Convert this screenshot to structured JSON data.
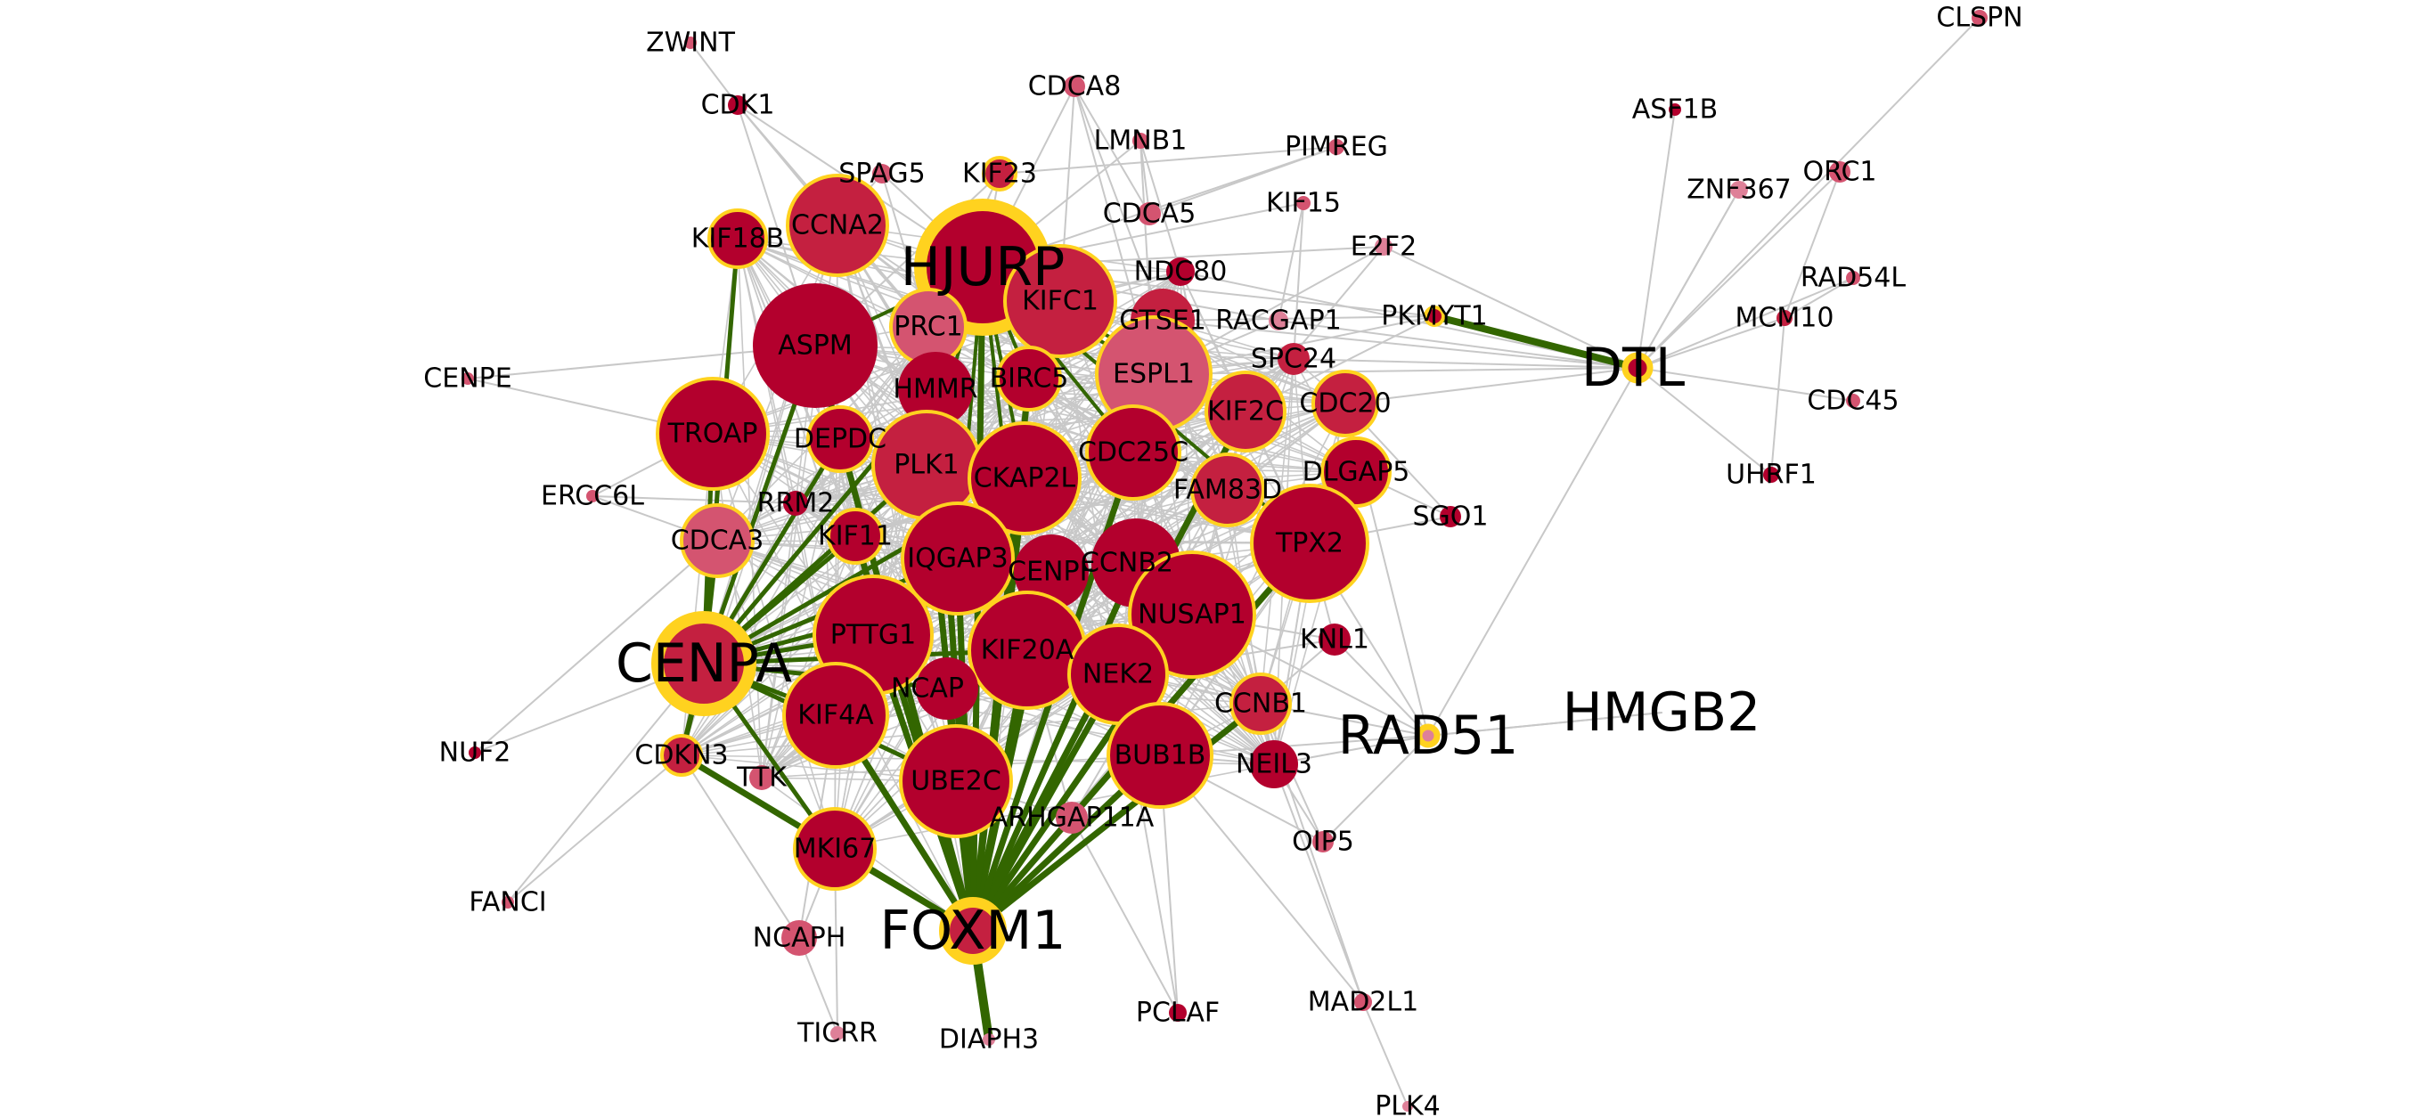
{
  "colors": {
    "background": "#ffffff",
    "edge_default": "#c8c8c8",
    "edge_highlight": "#336600",
    "node_dark": "#b3002d",
    "node_mid": "#c42040",
    "node_light": "#d45470",
    "node_pale": "#de8098",
    "hub_ring": "#ffd21f",
    "label": "#000000"
  },
  "nodes": [
    {
      "id": "HJURP",
      "label": "HJURP",
      "hub": true,
      "big_label": true
    },
    {
      "id": "CENPA",
      "label": "CENPA",
      "hub": true,
      "big_label": true
    },
    {
      "id": "FOXM1",
      "label": "FOXM1",
      "hub": true,
      "big_label": true
    },
    {
      "id": "DTL",
      "label": "DTL",
      "hub": true,
      "big_label": true
    },
    {
      "id": "RAD51",
      "label": "RAD51",
      "hub": true,
      "big_label": true
    },
    {
      "id": "HMGB2",
      "label": "HMGB2",
      "hub": false,
      "big_label": true
    },
    {
      "id": "ZWINT",
      "label": "ZWINT"
    },
    {
      "id": "CDK1",
      "label": "CDK1"
    },
    {
      "id": "CDCA8",
      "label": "CDCA8"
    },
    {
      "id": "LMNB1",
      "label": "LMNB1"
    },
    {
      "id": "PIMREG",
      "label": "PIMREG"
    },
    {
      "id": "SPAG5",
      "label": "SPAG5"
    },
    {
      "id": "KIF23",
      "label": "KIF23"
    },
    {
      "id": "CDCA5",
      "label": "CDCA5"
    },
    {
      "id": "KIF15",
      "label": "KIF15"
    },
    {
      "id": "E2F2",
      "label": "E2F2"
    },
    {
      "id": "KIF18B",
      "label": "KIF18B"
    },
    {
      "id": "CCNA2",
      "label": "CCNA2"
    },
    {
      "id": "PRC1",
      "label": "PRC1"
    },
    {
      "id": "KIFC1",
      "label": "KIFC1"
    },
    {
      "id": "NDC80",
      "label": "NDC80"
    },
    {
      "id": "GTSE1",
      "label": "GTSE1"
    },
    {
      "id": "RACGAP1",
      "label": "RACGAP1"
    },
    {
      "id": "PKMYT1",
      "label": "PKMYT1"
    },
    {
      "id": "ASPM",
      "label": "ASPM"
    },
    {
      "id": "HMMR",
      "label": "HMMR"
    },
    {
      "id": "BIRC5",
      "label": "BIRC5"
    },
    {
      "id": "ESPL1",
      "label": "ESPL1"
    },
    {
      "id": "SPC24",
      "label": "SPC24"
    },
    {
      "id": "CENPE",
      "label": "CENPE"
    },
    {
      "id": "KIF2C",
      "label": "KIF2C"
    },
    {
      "id": "CDC20",
      "label": "CDC20"
    },
    {
      "id": "TROAP",
      "label": "TROAP"
    },
    {
      "id": "DEPDC",
      "label": "DEPDC"
    },
    {
      "id": "PLK1",
      "label": "PLK1"
    },
    {
      "id": "CKAP2L",
      "label": "CKAP2L"
    },
    {
      "id": "CDC25C",
      "label": "CDC25C"
    },
    {
      "id": "DLGAP5",
      "label": "DLGAP5"
    },
    {
      "id": "FAM83D",
      "label": "FAM83D"
    },
    {
      "id": "ERCC6L",
      "label": "ERCC6L"
    },
    {
      "id": "RRM2",
      "label": "RRM2"
    },
    {
      "id": "SGO1",
      "label": "SGO1"
    },
    {
      "id": "CDCA3",
      "label": "CDCA3"
    },
    {
      "id": "KIF11",
      "label": "KIF11"
    },
    {
      "id": "IQGAP3",
      "label": "IQGAP3"
    },
    {
      "id": "CENPF",
      "label": "CENPF"
    },
    {
      "id": "CCNB2",
      "label": "CCNB2"
    },
    {
      "id": "TPX2",
      "label": "TPX2"
    },
    {
      "id": "PTTG1",
      "label": "PTTG1"
    },
    {
      "id": "KIF20A",
      "label": "KIF20A"
    },
    {
      "id": "NUSAP1",
      "label": "NUSAP1"
    },
    {
      "id": "KNL1",
      "label": "KNL1"
    },
    {
      "id": "NCAPG",
      "label": "NCAP"
    },
    {
      "id": "NEK2",
      "label": "NEK2"
    },
    {
      "id": "KIF4A",
      "label": "KIF4A"
    },
    {
      "id": "CCNB1",
      "label": "CCNB1"
    },
    {
      "id": "NUF2",
      "label": "NUF2"
    },
    {
      "id": "CDKN3",
      "label": "CDKN3"
    },
    {
      "id": "TTK",
      "label": "TTK"
    },
    {
      "id": "UBE2C",
      "label": "UBE2C"
    },
    {
      "id": "BUB1B",
      "label": "BUB1B"
    },
    {
      "id": "NEIL3",
      "label": "NEIL3"
    },
    {
      "id": "ARHGAP11A",
      "label": "ARHGAP11A"
    },
    {
      "id": "OIP5",
      "label": "OIP5"
    },
    {
      "id": "MKI67",
      "label": "MKI67"
    },
    {
      "id": "FANCI",
      "label": "FANCI"
    },
    {
      "id": "NCAPH",
      "label": "NCAPH"
    },
    {
      "id": "TICRR",
      "label": "TICRR"
    },
    {
      "id": "DIAPH3",
      "label": "DIAPH3"
    },
    {
      "id": "PCLAF",
      "label": "PCLAF"
    },
    {
      "id": "MAD2L1",
      "label": "MAD2L1"
    },
    {
      "id": "PLK4",
      "label": "PLK4"
    },
    {
      "id": "CLSPN",
      "label": "CLSPN"
    },
    {
      "id": "ASF1B",
      "label": "ASF1B"
    },
    {
      "id": "ORC1",
      "label": "ORC1"
    },
    {
      "id": "ZNF367",
      "label": "ZNF367"
    },
    {
      "id": "RAD54L",
      "label": "RAD54L"
    },
    {
      "id": "MCM10",
      "label": "MCM10"
    },
    {
      "id": "CDC45",
      "label": "CDC45"
    },
    {
      "id": "UHRF1",
      "label": "UHRF1"
    }
  ]
}
